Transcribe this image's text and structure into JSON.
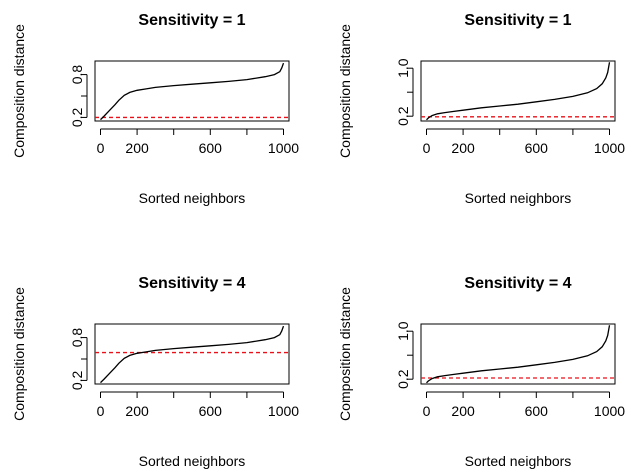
{
  "chart_data": [
    {
      "type": "line",
      "title": "Sensitivity =  1",
      "xlabel": "Sorted neighbors",
      "ylabel": "Composition distance",
      "xlim": [
        -30,
        1030
      ],
      "ylim": [
        0.15,
        0.99
      ],
      "xticks": [
        0,
        200,
        600,
        1000
      ],
      "xtick_minor": [
        400,
        800
      ],
      "xticklabels": [
        "0",
        "200",
        "600",
        "1000"
      ],
      "yticks": [
        0.2,
        0.5,
        0.8
      ],
      "yticklabels": [
        "0.2",
        "",
        "0.8"
      ],
      "series": [
        {
          "x": [
            0,
            20,
            50,
            80,
            100,
            130,
            160,
            200,
            250,
            300,
            400,
            500,
            600,
            700,
            800,
            900,
            950,
            980,
            990,
            1000
          ],
          "y": [
            0.17,
            0.22,
            0.3,
            0.38,
            0.44,
            0.51,
            0.55,
            0.58,
            0.6,
            0.62,
            0.645,
            0.665,
            0.685,
            0.705,
            0.73,
            0.77,
            0.8,
            0.84,
            0.89,
            0.96
          ]
        }
      ],
      "threshold": 0.2,
      "grid": false
    },
    {
      "type": "line",
      "title": "Sensitivity =  1",
      "xlabel": "Sorted neighbors",
      "ylabel": "Composition distance",
      "xlim": [
        -30,
        1030
      ],
      "ylim": [
        0.12,
        1.12
      ],
      "xticks": [
        0,
        200,
        600,
        1000
      ],
      "xtick_minor": [
        400,
        800
      ],
      "xticklabels": [
        "0",
        "200",
        "600",
        "1000"
      ],
      "yticks": [
        0.2,
        0.6,
        1.0
      ],
      "yticklabels": [
        "0.2",
        "",
        "1.0"
      ],
      "series": [
        {
          "x": [
            0,
            10,
            30,
            60,
            100,
            150,
            200,
            300,
            400,
            500,
            600,
            700,
            800,
            880,
            930,
            960,
            980,
            990,
            1000
          ],
          "y": [
            0.14,
            0.17,
            0.21,
            0.24,
            0.26,
            0.28,
            0.3,
            0.34,
            0.37,
            0.4,
            0.44,
            0.48,
            0.53,
            0.59,
            0.66,
            0.74,
            0.84,
            0.93,
            1.1
          ]
        }
      ],
      "threshold": 0.19,
      "grid": false
    },
    {
      "type": "line",
      "title": "Sensitivity =  4",
      "xlabel": "Sorted neighbors",
      "ylabel": "Composition distance",
      "xlim": [
        -30,
        1030
      ],
      "ylim": [
        0.15,
        0.99
      ],
      "xticks": [
        0,
        200,
        600,
        1000
      ],
      "xtick_minor": [
        400,
        800
      ],
      "xticklabels": [
        "0",
        "200",
        "600",
        "1000"
      ],
      "yticks": [
        0.2,
        0.5,
        0.8
      ],
      "yticklabels": [
        "0.2",
        "",
        "0.8"
      ],
      "series": [
        {
          "x": [
            0,
            20,
            50,
            80,
            100,
            130,
            160,
            200,
            250,
            300,
            400,
            500,
            600,
            700,
            800,
            900,
            950,
            980,
            990,
            1000
          ],
          "y": [
            0.17,
            0.22,
            0.3,
            0.38,
            0.44,
            0.51,
            0.55,
            0.58,
            0.6,
            0.62,
            0.645,
            0.665,
            0.685,
            0.705,
            0.73,
            0.77,
            0.8,
            0.84,
            0.89,
            0.96
          ]
        }
      ],
      "threshold": 0.59,
      "grid": false
    },
    {
      "type": "line",
      "title": "Sensitivity =  4",
      "xlabel": "Sorted neighbors",
      "ylabel": "Composition distance",
      "xlim": [
        -30,
        1030
      ],
      "ylim": [
        0.12,
        1.12
      ],
      "xticks": [
        0,
        200,
        600,
        1000
      ],
      "xtick_minor": [
        400,
        800
      ],
      "xticklabels": [
        "0",
        "200",
        "600",
        "1000"
      ],
      "yticks": [
        0.2,
        0.6,
        1.0
      ],
      "yticklabels": [
        "0.2",
        "",
        "1.0"
      ],
      "series": [
        {
          "x": [
            0,
            10,
            30,
            60,
            100,
            150,
            200,
            300,
            400,
            500,
            600,
            700,
            800,
            880,
            930,
            960,
            980,
            990,
            1000
          ],
          "y": [
            0.14,
            0.17,
            0.21,
            0.24,
            0.26,
            0.28,
            0.3,
            0.34,
            0.37,
            0.4,
            0.44,
            0.48,
            0.53,
            0.59,
            0.66,
            0.74,
            0.84,
            0.93,
            1.1
          ]
        }
      ],
      "threshold": 0.22,
      "grid": false
    }
  ],
  "colors": {
    "curve": "#000000",
    "threshold": "#e8111a",
    "background": "#ffffff"
  }
}
